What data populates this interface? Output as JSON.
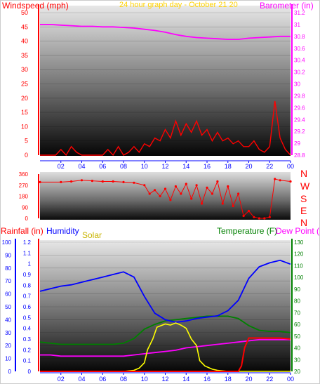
{
  "header": {
    "windspeed_label": "Windspeed (mph)",
    "title": "24 hour graph day - October 21 20",
    "barometer_label": "Barometer (in)"
  },
  "direction_labels": [
    "N",
    "W",
    "S",
    "E",
    "N"
  ],
  "bottom_header": {
    "rainfall_label": "Rainfall (in)",
    "humidity_label": "Humidity",
    "solar_label": "Solar",
    "temperature_label": "Temperature (F)",
    "dewpoint_label": "Dew Point ("
  },
  "colors": {
    "windspeed": "#ff0000",
    "barometer": "#ff00ff",
    "title": "#ffd200",
    "humidity": "#0000ff",
    "solar": "#ffff00",
    "temperature": "#008000",
    "dewpoint": "#ff00ff",
    "rainfall": "#ff0000",
    "direction": "#ff0000"
  },
  "chart_data": [
    {
      "type": "line",
      "x_ticks": [
        "02",
        "04",
        "06",
        "08",
        "10",
        "12",
        "14",
        "16",
        "18",
        "20",
        "22",
        "00"
      ],
      "x_range": [
        0,
        24
      ],
      "y_left_ticks": [
        "0",
        "5",
        "10",
        "15",
        "20",
        "25",
        "30",
        "35",
        "40",
        "45",
        "50"
      ],
      "y_left_range": [
        0,
        50
      ],
      "y_right_ticks": [
        "28.8",
        "29",
        "29.2",
        "29.4",
        "29.6",
        "29.8",
        "30",
        "30.2",
        "30.4",
        "30.6",
        "30.8",
        "31",
        "31.2"
      ],
      "y_right_range": [
        28.8,
        31.2
      ],
      "series": [
        {
          "name": "Windspeed (mph)",
          "axis": "left",
          "x": [
            0,
            1.5,
            2,
            2.5,
            3,
            3.5,
            4,
            5,
            6,
            6.5,
            7,
            7.5,
            8,
            8.5,
            9,
            9.5,
            10,
            10.5,
            11,
            11.5,
            12,
            12.5,
            13,
            13.5,
            14,
            14.5,
            15,
            15.5,
            16,
            16.5,
            17,
            17.5,
            18,
            18.5,
            19,
            19.5,
            20,
            20.5,
            21,
            21.5,
            22,
            22.5,
            23,
            23.5,
            24
          ],
          "y": [
            0,
            0,
            2,
            0,
            3,
            1,
            0,
            0,
            0,
            2,
            0,
            3,
            0,
            1,
            3,
            1,
            4,
            3,
            6,
            5,
            9,
            6,
            12,
            7,
            11,
            8,
            12,
            7,
            9,
            5,
            8,
            5,
            6,
            4,
            5,
            3,
            3,
            5,
            2,
            1,
            3,
            19,
            6,
            2,
            0
          ]
        },
        {
          "name": "Barometer (in)",
          "axis": "right",
          "x": [
            0,
            1,
            2,
            3,
            4,
            5,
            6,
            7,
            8,
            9,
            10,
            11,
            12,
            13,
            14,
            15,
            16,
            17,
            18,
            19,
            20,
            21,
            22,
            23,
            24
          ],
          "y": [
            31.0,
            31.0,
            30.99,
            30.98,
            30.97,
            30.97,
            30.96,
            30.96,
            30.95,
            30.94,
            30.92,
            30.9,
            30.87,
            30.83,
            30.8,
            30.78,
            30.77,
            30.76,
            30.75,
            30.75,
            30.77,
            30.78,
            30.79,
            30.8,
            30.8
          ]
        }
      ]
    },
    {
      "type": "scatter",
      "x_range": [
        0,
        24
      ],
      "y_ticks": [
        "0",
        "90",
        "180",
        "270",
        "360"
      ],
      "y_range": [
        0,
        360
      ],
      "series": [
        {
          "name": "Wind direction",
          "x": [
            0,
            2,
            3,
            4,
            5,
            6,
            7,
            8,
            9,
            10,
            10.5,
            11,
            11.5,
            12,
            12.5,
            13,
            13.5,
            14,
            14.5,
            15,
            15.5,
            16,
            16.5,
            17,
            17.5,
            18,
            18.5,
            19,
            19.5,
            20,
            20.5,
            21,
            21.5,
            22,
            22.5,
            23,
            24
          ],
          "y": [
            295,
            295,
            300,
            310,
            305,
            300,
            300,
            295,
            290,
            270,
            200,
            230,
            180,
            240,
            150,
            260,
            200,
            280,
            160,
            270,
            120,
            250,
            200,
            300,
            120,
            260,
            100,
            200,
            20,
            60,
            10,
            0,
            0,
            10,
            320,
            310,
            300
          ]
        }
      ]
    },
    {
      "type": "line",
      "x_ticks": [
        "02",
        "04",
        "06",
        "08",
        "10",
        "12",
        "14",
        "16",
        "18",
        "20",
        "22",
        "00"
      ],
      "x_range": [
        0,
        24
      ],
      "y_left_humidity_ticks": [
        "0",
        "10",
        "20",
        "30",
        "40",
        "50",
        "60",
        "70",
        "80",
        "90",
        "100"
      ],
      "y_left_rain_ticks": [
        "0",
        "0.1",
        "0.2",
        "0.3",
        "0.4",
        "0.5",
        "0.6",
        "0.7",
        "0.8",
        "0.9",
        "1",
        "1.1",
        "1.2"
      ],
      "y_right_ticks": [
        "20",
        "30",
        "40",
        "50",
        "60",
        "70",
        "80",
        "90",
        "100",
        "110",
        "120",
        "130"
      ],
      "y_right_range": [
        20,
        130
      ],
      "series": [
        {
          "name": "Humidity",
          "axis": "humidity",
          "x": [
            0,
            1,
            2,
            3,
            4,
            5,
            6,
            7,
            8,
            9,
            10,
            11,
            12,
            13,
            14,
            15,
            16,
            17,
            18,
            19,
            20,
            21,
            22,
            23,
            24
          ],
          "y": [
            62,
            64,
            66,
            67,
            69,
            71,
            73,
            75,
            77,
            73,
            58,
            45,
            40,
            38,
            39,
            41,
            42,
            43,
            47,
            55,
            72,
            81,
            84,
            86,
            83
          ]
        },
        {
          "name": "Solar",
          "axis": "rain",
          "x": [
            0,
            7,
            8,
            9,
            9.5,
            10,
            10.3,
            10.8,
            11.2,
            12,
            12.5,
            13,
            13.5,
            14,
            14.5,
            15,
            15.3,
            15.8,
            16.5,
            17,
            18,
            19,
            24
          ],
          "y": [
            0,
            0,
            0,
            0.01,
            0.03,
            0.08,
            0.2,
            0.3,
            0.41,
            0.44,
            0.43,
            0.45,
            0.43,
            0.4,
            0.3,
            0.24,
            0.1,
            0.05,
            0.02,
            0.01,
            0,
            0,
            0
          ]
        },
        {
          "name": "Temperature (F)",
          "axis": "right",
          "x": [
            0,
            1,
            2,
            3,
            4,
            5,
            6,
            7,
            8,
            9,
            10,
            11,
            12,
            13,
            14,
            15,
            16,
            17,
            18,
            19,
            20,
            21,
            22,
            23,
            24
          ],
          "y": [
            45,
            44,
            43,
            43,
            43,
            43,
            43,
            43,
            44,
            48,
            56,
            60,
            63,
            64,
            65,
            66,
            67,
            67,
            67,
            65,
            59,
            55,
            54,
            54,
            53
          ]
        },
        {
          "name": "Dew Point",
          "axis": "right",
          "x": [
            0,
            1,
            2,
            3,
            4,
            5,
            6,
            7,
            8,
            9,
            10,
            11,
            12,
            13,
            14,
            15,
            16,
            17,
            18,
            19,
            20,
            21,
            22,
            23,
            24
          ],
          "y": [
            34,
            34,
            33,
            33,
            33,
            33,
            33,
            33,
            33,
            34,
            35,
            36,
            37,
            38,
            40,
            41,
            42,
            43,
            44,
            45,
            46,
            47,
            47,
            47,
            47
          ]
        },
        {
          "name": "Rainfall (in)",
          "axis": "rain",
          "x": [
            0,
            18,
            19,
            19.3,
            19.6,
            20,
            21,
            22,
            23,
            24
          ],
          "y": [
            0,
            0,
            0,
            0.05,
            0.22,
            0.31,
            0.31,
            0.31,
            0.31,
            0.3
          ]
        }
      ]
    }
  ]
}
